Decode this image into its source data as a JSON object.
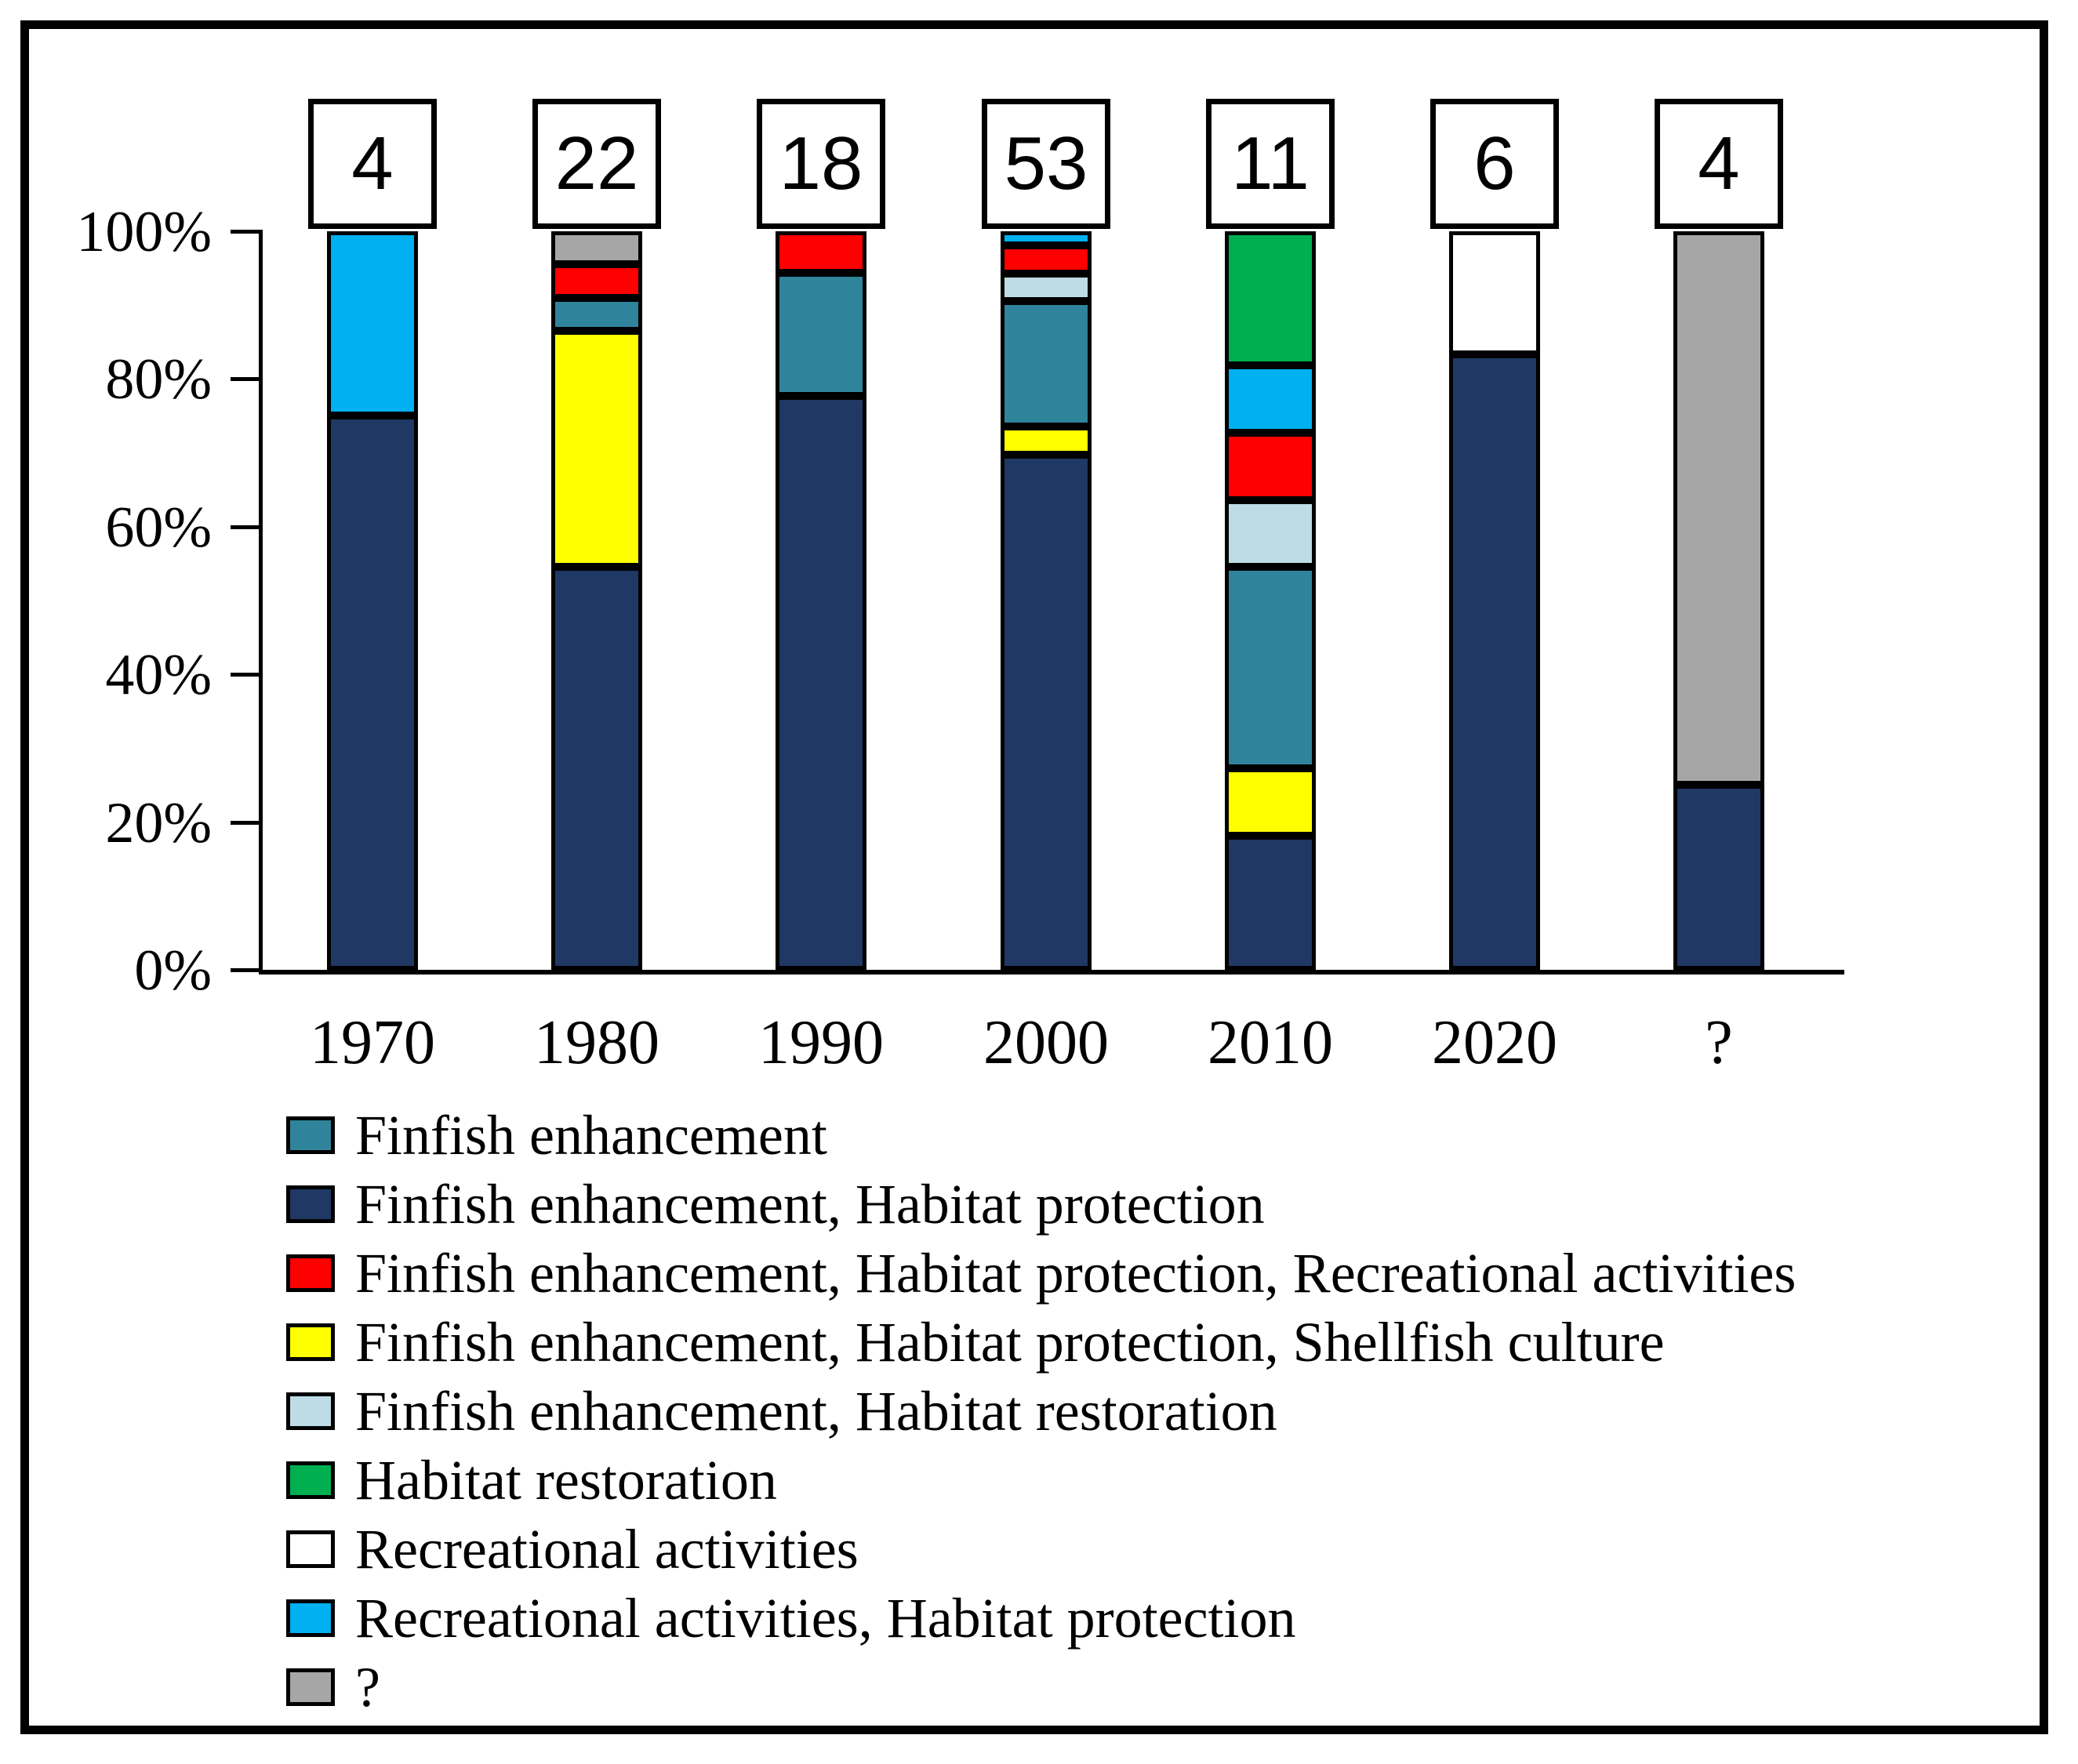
{
  "figure": {
    "y_axis_labels": [
      "100%",
      "80%",
      "60%",
      "40%",
      "20%",
      "0%"
    ],
    "x_axis_labels": [
      "1970",
      "1980",
      "1990",
      "2000",
      "2010",
      "2020",
      "?"
    ]
  },
  "chart_data": {
    "type": "bar",
    "stacked": true,
    "percent_scale": true,
    "title": "",
    "xlabel": "",
    "ylabel": "",
    "ylim": [
      0,
      100
    ],
    "y_ticks": [
      0,
      20,
      40,
      60,
      80,
      100
    ],
    "y_tick_labels": [
      "0%",
      "20%",
      "40%",
      "60%",
      "80%",
      "100%"
    ],
    "grid": false,
    "legend_position": "bottom-left",
    "categories": [
      "1970",
      "1980",
      "1990",
      "2000",
      "2010",
      "2020",
      "?"
    ],
    "bar_counts": [
      4,
      22,
      18,
      53,
      11,
      6,
      4
    ],
    "series": [
      {
        "name": "Finfish enhancement, Habitat protection",
        "color": "#1F3864",
        "values": [
          75.0,
          54.5,
          77.8,
          69.8,
          18.2,
          83.3,
          25.0
        ]
      },
      {
        "name": "Finfish enhancement, Habitat protection, Shellfish culture",
        "color": "#FFFF00",
        "values": [
          0,
          31.8,
          0,
          3.8,
          9.1,
          0,
          0
        ]
      },
      {
        "name": "Finfish enhancement",
        "color": "#2F849B",
        "values": [
          0,
          4.5,
          16.7,
          17.0,
          27.3,
          0,
          0
        ]
      },
      {
        "name": "Finfish enhancement, Habitat restoration",
        "color": "#BDDCE6",
        "values": [
          0,
          0,
          0,
          3.8,
          9.1,
          0,
          0
        ]
      },
      {
        "name": "Finfish enhancement, Habitat protection, Recreational activities",
        "color": "#FF0000",
        "values": [
          0,
          4.5,
          5.6,
          3.8,
          9.1,
          0,
          0
        ]
      },
      {
        "name": "Recreational activities, Habitat protection",
        "color": "#00B0F0",
        "values": [
          25.0,
          0,
          0,
          1.9,
          9.1,
          0,
          0
        ]
      },
      {
        "name": "Habitat restoration",
        "color": "#00B050",
        "values": [
          0,
          0,
          0,
          0,
          18.2,
          0,
          0
        ]
      },
      {
        "name": "Recreational activities",
        "color": "#FFFFFF",
        "values": [
          0,
          0,
          0,
          0,
          0,
          16.7,
          0
        ]
      },
      {
        "name": "?",
        "color": "#A6A6A6",
        "values": [
          0,
          4.5,
          0,
          0,
          0,
          0,
          75.0
        ]
      }
    ],
    "legend": [
      {
        "label": "Finfish enhancement",
        "color": "#2F849B"
      },
      {
        "label": "Finfish enhancement, Habitat protection",
        "color": "#1F3864"
      },
      {
        "label": "Finfish enhancement, Habitat protection, Recreational activities",
        "color": "#FF0000"
      },
      {
        "label": "Finfish enhancement, Habitat protection, Shellfish culture",
        "color": "#FFFF00"
      },
      {
        "label": "Finfish enhancement, Habitat restoration",
        "color": "#BDDCE6"
      },
      {
        "label": "Habitat restoration",
        "color": "#00B050"
      },
      {
        "label": "Recreational activities",
        "color": "#FFFFFF"
      },
      {
        "label": "Recreational activities, Habitat protection",
        "color": "#00B0F0"
      },
      {
        "label": "?",
        "color": "#A6A6A6"
      }
    ]
  }
}
